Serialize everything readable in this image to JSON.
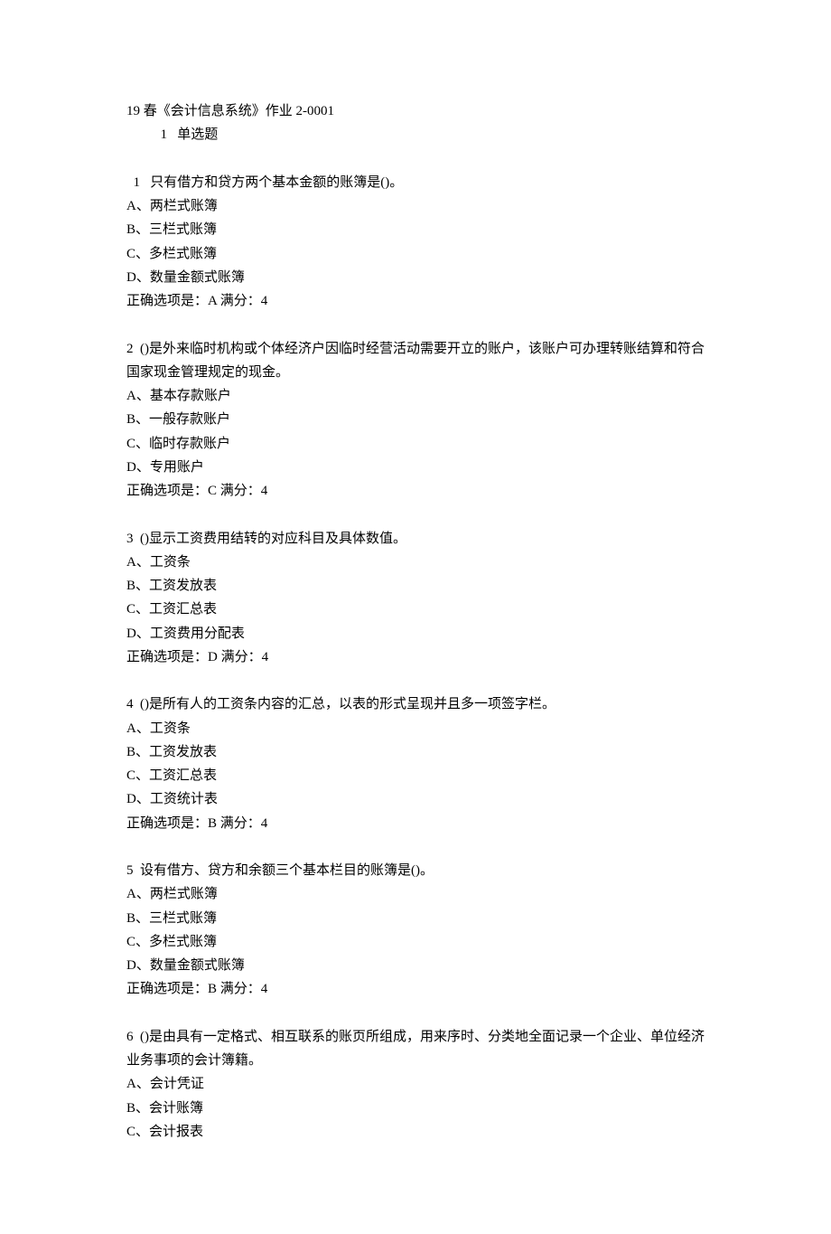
{
  "title": "19 春《会计信息系统》作业 2-0001",
  "section": {
    "number": "1",
    "label": "单选题"
  },
  "questions": [
    {
      "number": "1",
      "text": "只有借方和贷方两个基本金额的账簿是()。",
      "options": [
        "A、两栏式账簿",
        "B、三栏式账簿",
        "C、多栏式账簿",
        "D、数量金额式账簿"
      ],
      "answer": "正确选项是：A  满分：4"
    },
    {
      "number": "2",
      "text": "()是外来临时机构或个体经济户因临时经营活动需要开立的账户，该账户可办理转账结算和符合国家现金管理规定的现金。",
      "options": [
        "A、基本存款账户",
        "B、一般存款账户",
        "C、临时存款账户",
        "D、专用账户"
      ],
      "answer": "正确选项是：C  满分：4"
    },
    {
      "number": "3",
      "text": "()显示工资费用结转的对应科目及具体数值。",
      "options": [
        "A、工资条",
        "B、工资发放表",
        "C、工资汇总表",
        "D、工资费用分配表"
      ],
      "answer": "正确选项是：D  满分：4"
    },
    {
      "number": "4",
      "text": "()是所有人的工资条内容的汇总，以表的形式呈现并且多一项签字栏。",
      "options": [
        "A、工资条",
        "B、工资发放表",
        "C、工资汇总表",
        "D、工资统计表"
      ],
      "answer": "正确选项是：B  满分：4"
    },
    {
      "number": "5",
      "text": "设有借方、贷方和余额三个基本栏目的账簿是()。",
      "options": [
        "A、两栏式账簿",
        "B、三栏式账簿",
        "C、多栏式账簿",
        "D、数量金额式账簿"
      ],
      "answer": "正确选项是：B  满分：4"
    },
    {
      "number": "6",
      "text": "()是由具有一定格式、相互联系的账页所组成，用来序时、分类地全面记录一个企业、单位经济业务事项的会计簿籍。",
      "options": [
        "A、会计凭证",
        "B、会计账簿",
        "C、会计报表"
      ],
      "answer": ""
    }
  ]
}
